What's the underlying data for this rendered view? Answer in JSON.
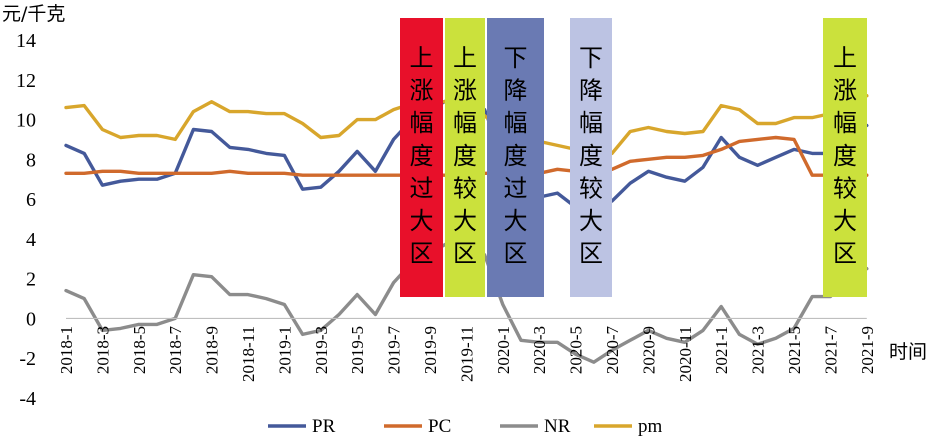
{
  "chart_data": {
    "type": "line",
    "y_unit": "元/千克",
    "x_unit": "时间",
    "ylim": [
      -4,
      14
    ],
    "y_ticks": [
      "-4",
      "-2",
      "0",
      "2",
      "4",
      "6",
      "8",
      "10",
      "12",
      "14"
    ],
    "x_tick_labels": [
      "2018-1",
      "2018-3",
      "2018-5",
      "2018-7",
      "2018-9",
      "2018-11",
      "2019-1",
      "2019-3",
      "2019-5",
      "2019-7",
      "2019-9",
      "2019-11",
      "2020-1",
      "2020-3",
      "2020-5",
      "2020-7",
      "2020-9",
      "2020-11",
      "2021-1",
      "2021-3",
      "2021-5",
      "2021-7",
      "2021-9"
    ],
    "months": [
      "2018-1",
      "2018-2",
      "2018-3",
      "2018-4",
      "2018-5",
      "2018-6",
      "2018-7",
      "2018-8",
      "2018-9",
      "2018-10",
      "2018-11",
      "2018-12",
      "2019-1",
      "2019-2",
      "2019-3",
      "2019-4",
      "2019-5",
      "2019-6",
      "2019-7",
      "2019-8",
      "2019-9",
      "2019-10",
      "2019-11",
      "2019-12",
      "2020-1",
      "2020-2",
      "2020-3",
      "2020-4",
      "2020-5",
      "2020-6",
      "2020-7",
      "2020-8",
      "2020-9",
      "2020-10",
      "2020-11",
      "2020-12",
      "2021-1",
      "2021-2",
      "2021-3",
      "2021-4",
      "2021-5",
      "2021-6",
      "2021-7",
      "2021-8",
      "2021-9"
    ],
    "grid": false,
    "legend_position": "bottom",
    "series": [
      {
        "name": "PR",
        "color": "#44599a",
        "values": [
          8.7,
          8.3,
          6.7,
          6.9,
          7.0,
          7.0,
          7.3,
          9.5,
          9.4,
          8.6,
          8.5,
          8.3,
          8.2,
          6.5,
          6.6,
          7.4,
          8.4,
          7.4,
          9.0,
          10.0,
          10.5,
          11.0,
          11.0,
          10.5,
          8.0,
          6.2,
          6.1,
          6.3,
          5.6,
          5.7,
          5.9,
          6.8,
          7.4,
          7.1,
          6.9,
          7.6,
          9.1,
          8.1,
          7.7,
          8.1,
          8.5,
          8.3,
          8.3,
          9.3,
          9.7
        ]
      },
      {
        "name": "PC",
        "color": "#d06a2c",
        "values": [
          7.3,
          7.3,
          7.4,
          7.4,
          7.3,
          7.3,
          7.3,
          7.3,
          7.3,
          7.4,
          7.3,
          7.3,
          7.3,
          7.2,
          7.2,
          7.2,
          7.2,
          7.2,
          7.2,
          7.2,
          7.2,
          7.2,
          7.2,
          7.3,
          7.3,
          7.3,
          7.3,
          7.5,
          7.4,
          7.4,
          7.5,
          7.9,
          8.0,
          8.1,
          8.1,
          8.2,
          8.5,
          8.9,
          9.0,
          9.1,
          9.0,
          7.2,
          7.2,
          7.2,
          7.2
        ]
      },
      {
        "name": "NR",
        "color": "#8c8c8c",
        "values": [
          1.4,
          1.0,
          -0.6,
          -0.5,
          -0.3,
          -0.3,
          0.0,
          2.2,
          2.1,
          1.2,
          1.2,
          1.0,
          0.7,
          -0.8,
          -0.6,
          0.2,
          1.2,
          0.2,
          1.8,
          2.8,
          3.3,
          3.8,
          3.8,
          3.2,
          0.7,
          -1.1,
          -1.2,
          -1.2,
          -1.8,
          -2.2,
          -1.6,
          -1.1,
          -0.6,
          -1.0,
          -1.2,
          -0.6,
          0.6,
          -0.8,
          -1.3,
          -1.0,
          -0.5,
          1.1,
          1.1,
          2.1,
          2.5
        ]
      },
      {
        "name": "pm",
        "color": "#d8a62c",
        "values": [
          10.6,
          10.7,
          9.5,
          9.1,
          9.2,
          9.2,
          9.0,
          10.4,
          10.9,
          10.4,
          10.4,
          10.3,
          10.3,
          9.8,
          9.1,
          9.2,
          10.0,
          10.0,
          10.5,
          10.8,
          10.9,
          10.9,
          10.5,
          10.2,
          9.4,
          9.0,
          8.9,
          8.7,
          8.5,
          8.4,
          8.3,
          9.4,
          9.6,
          9.4,
          9.3,
          9.4,
          10.7,
          10.5,
          9.8,
          9.8,
          10.1,
          10.1,
          10.3,
          11.1,
          11.2
        ]
      }
    ],
    "annotations": [
      {
        "text": "上涨幅度过大区",
        "color": "#e8102a"
      },
      {
        "text": "上涨幅度较大区",
        "color": "#cbe13c"
      },
      {
        "text": "下降幅度过大区",
        "color": "#6a7ab3"
      },
      {
        "text": "下降幅度较大区",
        "color": "#bcc3e3"
      },
      {
        "text": "上涨幅度较大区",
        "color": "#cbe13c"
      }
    ]
  }
}
